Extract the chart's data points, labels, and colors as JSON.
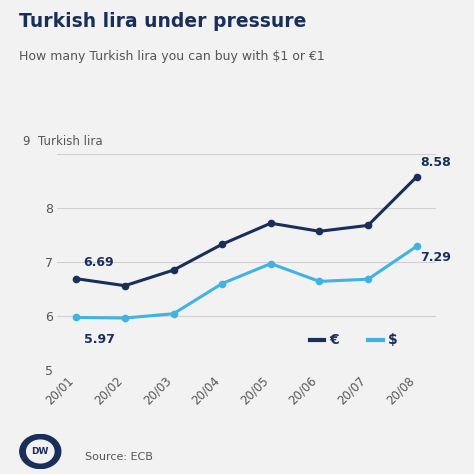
{
  "title": "Turkish lira under pressure",
  "subtitle": "How many Turkish lira you can buy with $1 or €1",
  "ylabel_inline": "9  Turkish lira",
  "source": "Source: ECB",
  "x_labels": [
    "20/01",
    "20/02",
    "20/03",
    "20/04",
    "20/05",
    "20/06",
    "20/07",
    "20/08"
  ],
  "euro_values": [
    6.69,
    6.56,
    6.85,
    7.33,
    7.72,
    7.57,
    7.68,
    8.58
  ],
  "dollar_values": [
    5.97,
    5.96,
    6.04,
    6.6,
    6.97,
    6.64,
    6.68,
    7.29
  ],
  "euro_color": "#1a2e5a",
  "dollar_color": "#41b3e0",
  "ylim_min": 5.0,
  "ylim_max": 9.4,
  "yticks": [
    5,
    6,
    7,
    8,
    9
  ],
  "ytick_labels": [
    "5",
    "6",
    "7",
    "8",
    ""
  ],
  "euro_label_start": "6.69",
  "dollar_label_start": "5.97",
  "euro_label_end": "8.58",
  "dollar_label_end": "7.29",
  "background_color": "#f2f2f2",
  "grid_color": "#d0d0d0",
  "title_color": "#1a2e5a",
  "subtitle_color": "#555555",
  "tick_label_color": "#555555",
  "dw_logo_color": "#1a2e5a",
  "legend_euro": "€",
  "legend_dollar": "$"
}
